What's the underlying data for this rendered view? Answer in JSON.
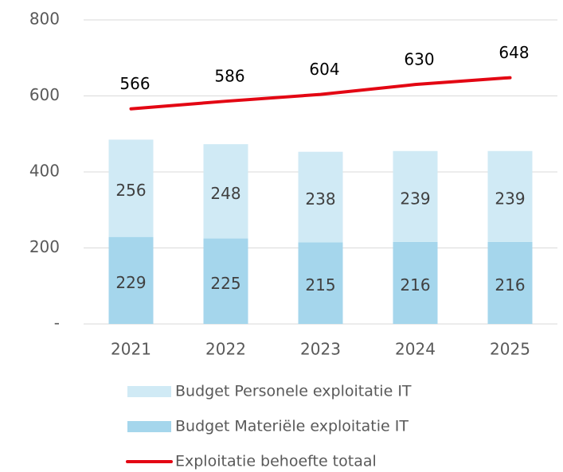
{
  "chart_data": {
    "type": "bar",
    "categories": [
      "2021",
      "2022",
      "2023",
      "2024",
      "2025"
    ],
    "series": [
      {
        "name": "Budget Personele exploitatie IT",
        "color": "#d0eaf5",
        "values": [
          256,
          248,
          238,
          239,
          239
        ]
      },
      {
        "name": "Budget Materiële exploitatie IT",
        "color": "#a5d6ec",
        "values": [
          229,
          225,
          215,
          216,
          216
        ]
      },
      {
        "name": "Exploitatie behoefte totaal",
        "color": "#e30613",
        "type": "line",
        "values": [
          566,
          586,
          604,
          630,
          648
        ]
      }
    ],
    "stacked": true,
    "ylim": [
      0,
      800
    ],
    "yticks": [
      {
        "value": 0,
        "label": "-"
      },
      200,
      400,
      600,
      800
    ],
    "grid": true
  }
}
